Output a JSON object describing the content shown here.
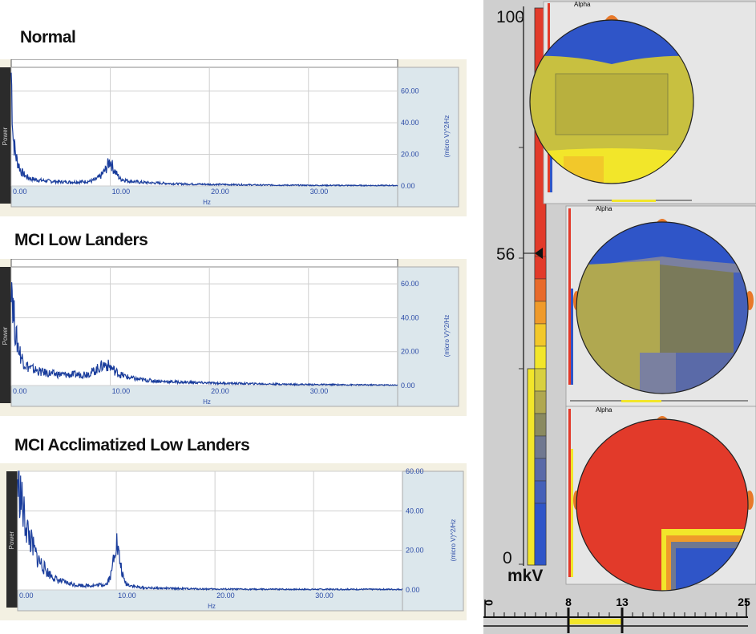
{
  "titles": {
    "normal": "Normal",
    "mci_low": "MCI Low Landers",
    "mci_accl": "MCI Acclimatized Low Landers"
  },
  "spectrum_labels": {
    "power": "Power",
    "unit": "(micro V)^2/Hz",
    "xlabel": "Hz"
  },
  "colorbar": {
    "max": "100",
    "marker": "56",
    "min": "0",
    "unit": "mkV"
  },
  "freq_scale": {
    "ticks": [
      "0",
      "8",
      "13",
      "25"
    ],
    "band": [
      8,
      13
    ],
    "band_color": "#f2e62a"
  },
  "topo_labels": {
    "alpha_1": "Alpha",
    "alpha_2": "Alpha",
    "alpha_3": "Alpha"
  },
  "colors": {
    "trace": "#1a3d9c",
    "axis_text": "#2a4aa6",
    "red": "#e23a2a",
    "yellow": "#f2e62a",
    "blue": "#2f55c8"
  },
  "chart_data": [
    {
      "type": "line",
      "title": "Normal",
      "xlabel": "Hz",
      "ylabel": "(micro V)^2/Hz",
      "xlim": [
        0,
        39
      ],
      "ylim": [
        0,
        75
      ],
      "xticks": [
        "0.00",
        "10.00",
        "20.00",
        "30.00"
      ],
      "yticks": [
        "0.00",
        "20.00",
        "40.00",
        "60.00"
      ],
      "grid": true,
      "x": [
        0,
        0.2,
        0.5,
        1,
        1.5,
        2,
        3,
        4,
        5,
        6,
        7,
        8,
        8.5,
        9,
        9.5,
        9.8,
        10,
        10.3,
        10.7,
        11,
        12,
        13,
        14,
        15,
        17,
        20,
        23,
        25,
        30,
        35,
        39
      ],
      "y": [
        72,
        30,
        18,
        9,
        6,
        4.5,
        3.5,
        3,
        2.6,
        2.5,
        2.6,
        3,
        4,
        6,
        10,
        14,
        16,
        11,
        7,
        4.5,
        3,
        2.4,
        2,
        1.8,
        1.3,
        1,
        0.8,
        0.6,
        0.4,
        0.3,
        0.3
      ],
      "series": [
        {
          "values": [
            72,
            30,
            18,
            9,
            6,
            4.5,
            3.5,
            3,
            2.6,
            2.5,
            2.6,
            3,
            4,
            6,
            10,
            14,
            16,
            11,
            7,
            4.5,
            3,
            2.4,
            2,
            1.8,
            1.3,
            1,
            0.8,
            0.6,
            0.4,
            0.3,
            0.3
          ]
        }
      ]
    },
    {
      "type": "line",
      "title": "MCI Low Landers",
      "xlabel": "Hz",
      "ylabel": "(micro V)^2/Hz",
      "xlim": [
        0,
        39
      ],
      "ylim": [
        0,
        70
      ],
      "xticks": [
        "0.00",
        "10.00",
        "20.00",
        "30.00"
      ],
      "yticks": [
        "0.00",
        "20.00",
        "40.00",
        "60.00"
      ],
      "grid": true,
      "x": [
        0,
        0.2,
        0.5,
        1,
        1.5,
        2,
        3,
        4,
        5,
        6,
        7,
        8,
        8.5,
        9,
        9.5,
        10,
        10.5,
        11,
        12,
        13,
        14,
        15,
        17,
        20,
        25,
        30,
        35,
        39
      ],
      "y": [
        70,
        45,
        28,
        17,
        12,
        10,
        8,
        7,
        6.5,
        6.3,
        6.5,
        7.5,
        9,
        11,
        12.5,
        11,
        8.5,
        6.5,
        4.5,
        3.5,
        3,
        2.5,
        2,
        1.5,
        1,
        0.6,
        0.4,
        0.3
      ],
      "series": [
        {
          "values": [
            70,
            45,
            28,
            17,
            12,
            10,
            8,
            7,
            6.5,
            6.3,
            6.5,
            7.5,
            9,
            11,
            12.5,
            11,
            8.5,
            6.5,
            4.5,
            3.5,
            3,
            2.5,
            2,
            1.5,
            1,
            0.6,
            0.4,
            0.3
          ]
        }
      ]
    },
    {
      "type": "line",
      "title": "MCI Acclimatized Low Landers",
      "xlabel": "Hz",
      "ylabel": "(micro V)^2/Hz",
      "xlim": [
        0,
        39
      ],
      "ylim": [
        0,
        60
      ],
      "xticks": [
        "0.00",
        "10.00",
        "20.00",
        "30.00"
      ],
      "yticks": [
        "0.00",
        "20.00",
        "40.00",
        "60.00"
      ],
      "grid": true,
      "x": [
        0,
        0.3,
        0.6,
        1,
        1.5,
        2,
        3,
        4,
        5,
        6,
        7,
        8,
        9,
        9.5,
        9.8,
        10,
        10.3,
        10.7,
        11,
        12,
        13,
        15,
        17,
        20,
        25,
        30,
        35,
        39
      ],
      "y": [
        55,
        48,
        38,
        30,
        22,
        16,
        9,
        5,
        3.5,
        2.5,
        2.2,
        2.3,
        3,
        8,
        20,
        25,
        16,
        6,
        3,
        1.5,
        1,
        0.8,
        0.6,
        0.4,
        0.3,
        0.3,
        0.3,
        0.3
      ],
      "series": [
        {
          "values": [
            55,
            48,
            38,
            30,
            22,
            16,
            9,
            5,
            3.5,
            2.5,
            2.2,
            2.3,
            3,
            8,
            20,
            25,
            16,
            6,
            3,
            1.5,
            1,
            0.8,
            0.6,
            0.4,
            0.3,
            0.3,
            0.3,
            0.3
          ]
        }
      ]
    },
    {
      "type": "heatmap",
      "title": "Alpha",
      "colorbar_range": [
        0,
        100
      ],
      "colorbar_marker": 56,
      "unit": "mkV",
      "band_hz": [
        8,
        13
      ],
      "maps": [
        {
          "name": "Normal",
          "regions": {
            "frontal": "#2f55c8",
            "central": "#c8c040",
            "posterior": "#f2e62a"
          }
        },
        {
          "name": "MCI Low Landers",
          "regions": {
            "frontal": "#2f55c8",
            "central": "#8a8a5a",
            "posterior": "#7a80a0"
          }
        },
        {
          "name": "MCI Acclimatized Low Landers",
          "regions": {
            "frontal": "#e23a2a",
            "central": "#e23a2a",
            "posterior_right": "#2f55c8"
          }
        }
      ]
    }
  ]
}
